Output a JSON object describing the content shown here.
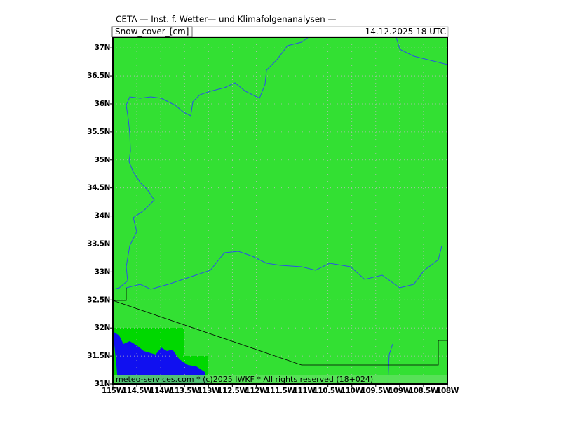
{
  "header": {
    "title": "CETA — Inst. f. Wetter— und Klimafolgenanalysen —",
    "field": "Snow_cover_[cm]",
    "valid_time": "14.12.2025 18 UTC"
  },
  "footer": "meteo-services.com * (c)2025 IWKF * All rights reserved (18+024)",
  "map": {
    "lon_lim": [
      -115,
      -108
    ],
    "lat_lim": [
      31,
      37.19
    ],
    "lat_ticks": [
      {
        "value": 31,
        "label": "31N"
      },
      {
        "value": 31.5,
        "label": "31.5N"
      },
      {
        "value": 32,
        "label": "32N"
      },
      {
        "value": 32.5,
        "label": "32.5N"
      },
      {
        "value": 33,
        "label": "33N"
      },
      {
        "value": 33.5,
        "label": "33.5N"
      },
      {
        "value": 34,
        "label": "34N"
      },
      {
        "value": 34.5,
        "label": "34.5N"
      },
      {
        "value": 35,
        "label": "35N"
      },
      {
        "value": 35.5,
        "label": "35.5N"
      },
      {
        "value": 36,
        "label": "36N"
      },
      {
        "value": 36.5,
        "label": "36.5N"
      },
      {
        "value": 37,
        "label": "37N"
      }
    ],
    "lon_ticks": [
      {
        "value": -115,
        "label": "115W"
      },
      {
        "value": -114.5,
        "label": "114.5W"
      },
      {
        "value": -114,
        "label": "114W"
      },
      {
        "value": -113.5,
        "label": "113.5W"
      },
      {
        "value": -113,
        "label": "113W"
      },
      {
        "value": -112.5,
        "label": "112.5W"
      },
      {
        "value": -112,
        "label": "112W"
      },
      {
        "value": -111.5,
        "label": "111.5W"
      },
      {
        "value": -111,
        "label": "111W"
      },
      {
        "value": -110.5,
        "label": "110.5W"
      },
      {
        "value": -110,
        "label": "110W"
      },
      {
        "value": -109.5,
        "label": "109.5W"
      },
      {
        "value": -109,
        "label": "109W"
      },
      {
        "value": -108.5,
        "label": "108.5W"
      },
      {
        "value": -108,
        "label": "108W"
      }
    ]
  }
}
